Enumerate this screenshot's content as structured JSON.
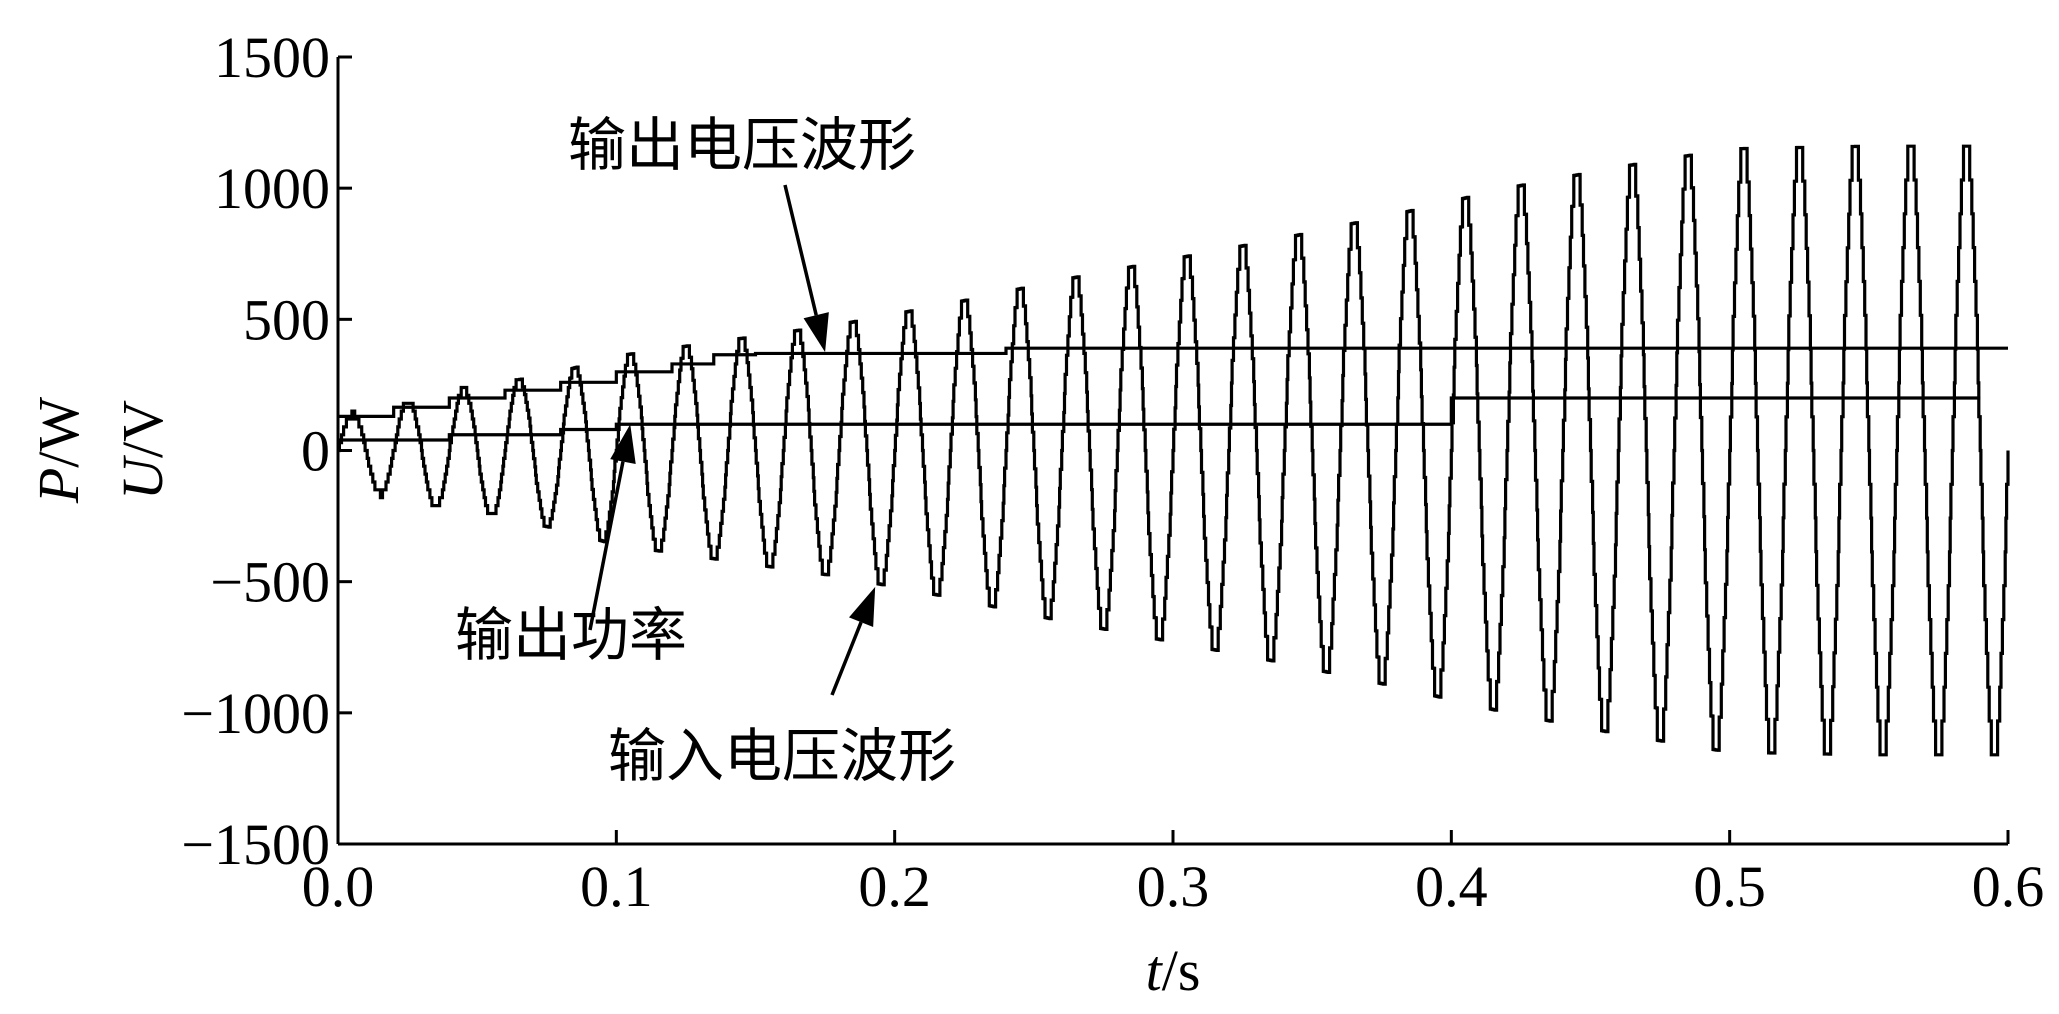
{
  "chart_data": {
    "type": "line",
    "title": "",
    "xlabel": {
      "var": "t",
      "unit": "/s"
    },
    "ylabel": {
      "line1": {
        "var": "P",
        "unit": "/W"
      },
      "line2": {
        "var": "U",
        "unit": "/V"
      }
    },
    "xlim": [
      0.0,
      0.6
    ],
    "ylim": [
      -1500,
      1500
    ],
    "xticks": [
      {
        "v": 0.0,
        "label": "0.0"
      },
      {
        "v": 0.1,
        "label": "0.1"
      },
      {
        "v": 0.2,
        "label": "0.2"
      },
      {
        "v": 0.3,
        "label": "0.3"
      },
      {
        "v": 0.4,
        "label": "0.4"
      },
      {
        "v": 0.5,
        "label": "0.5"
      },
      {
        "v": 0.6,
        "label": "0.6"
      }
    ],
    "yticks": [
      {
        "v": 1500,
        "label": "1500"
      },
      {
        "v": 1000,
        "label": "1000"
      },
      {
        "v": 500,
        "label": "500"
      },
      {
        "v": 0,
        "label": "0"
      },
      {
        "v": -500,
        "label": "−500"
      },
      {
        "v": -1000,
        "label": "−1000"
      },
      {
        "v": -1500,
        "label": "−1500"
      }
    ],
    "grid": false,
    "series": [
      {
        "name": "输出电压波形",
        "kind": "step",
        "points": [
          [
            0.0,
            130
          ],
          [
            0.02,
            165
          ],
          [
            0.04,
            200
          ],
          [
            0.06,
            230
          ],
          [
            0.08,
            260
          ],
          [
            0.1,
            300
          ],
          [
            0.12,
            330
          ],
          [
            0.135,
            365
          ],
          [
            0.15,
            370
          ],
          [
            0.24,
            375
          ],
          [
            0.24,
            390
          ],
          [
            0.59,
            390
          ],
          [
            0.59,
            390
          ],
          [
            0.6,
            390
          ]
        ]
      },
      {
        "name": "输出功率",
        "kind": "step",
        "points": [
          [
            0.0,
            40
          ],
          [
            0.04,
            60
          ],
          [
            0.08,
            80
          ],
          [
            0.1,
            100
          ],
          [
            0.13,
            100
          ],
          [
            0.4,
            100
          ],
          [
            0.4,
            200
          ],
          [
            0.59,
            200
          ]
        ]
      },
      {
        "name": "输入电压波形",
        "kind": "oscillation",
        "period": 0.02,
        "points": [
          [
            0.0,
            120
          ],
          [
            0.02,
            180
          ],
          [
            0.05,
            240
          ],
          [
            0.08,
            300
          ],
          [
            0.1,
            360
          ],
          [
            0.14,
            420
          ],
          [
            0.18,
            480
          ],
          [
            0.22,
            560
          ],
          [
            0.26,
            650
          ],
          [
            0.3,
            730
          ],
          [
            0.34,
            810
          ],
          [
            0.38,
            900
          ],
          [
            0.42,
            1000
          ],
          [
            0.46,
            1080
          ],
          [
            0.5,
            1150
          ],
          [
            0.55,
            1160
          ],
          [
            0.59,
            1160
          ]
        ],
        "end": 0.6
      }
    ],
    "annotations": [
      {
        "text": "输出电压波形",
        "points_to": [
          0.175,
          375
        ]
      },
      {
        "text": "输出功率",
        "points_to": [
          0.105,
          100
        ]
      },
      {
        "text": "输入电压波形",
        "points_to": [
          0.193,
          -520
        ]
      }
    ]
  }
}
